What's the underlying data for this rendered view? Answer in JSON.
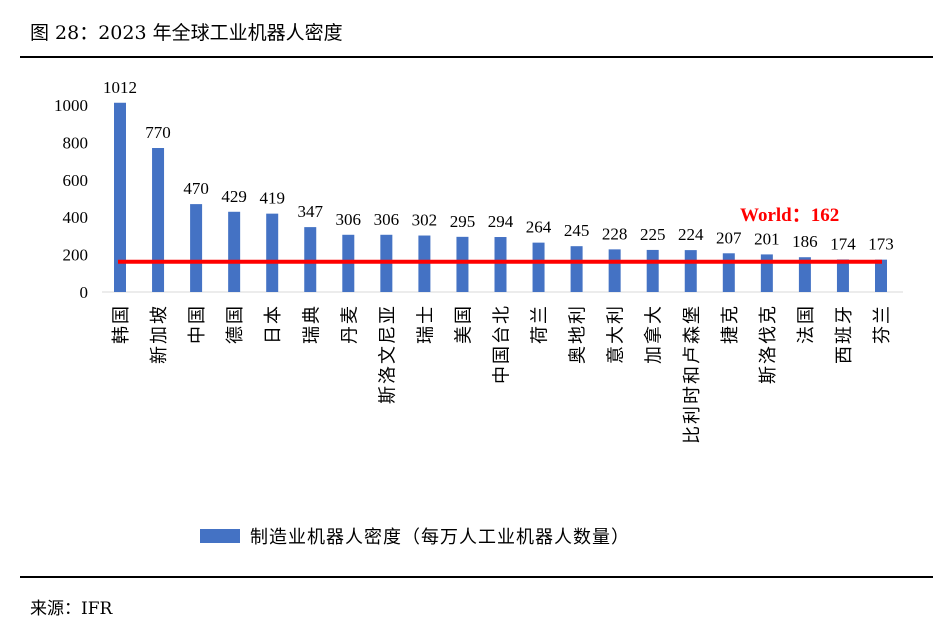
{
  "title": "图 28：2023 年全球工业机器人密度",
  "source": "来源：IFR",
  "chart_data": {
    "type": "bar",
    "title": "",
    "categories": [
      "韩国",
      "新加坡",
      "中国",
      "德国",
      "日本",
      "瑞典",
      "丹麦",
      "斯洛文尼亚",
      "瑞士",
      "美国",
      "中国台北",
      "荷兰",
      "奥地利",
      "意大利",
      "加拿大",
      "比利时和卢森堡",
      "捷克",
      "斯洛伐克",
      "法国",
      "西班牙",
      "芬兰"
    ],
    "series": [
      {
        "name": "制造业机器人密度（每万人工业机器人数量）",
        "values": [
          1012,
          770,
          470,
          429,
          419,
          347,
          306,
          306,
          302,
          295,
          294,
          264,
          245,
          228,
          225,
          224,
          207,
          201,
          186,
          174,
          173
        ],
        "color": "#4472C4"
      }
    ],
    "reference_line": {
      "label": "World：162",
      "value": 162,
      "color": "#FF0000"
    },
    "yticks": [
      0,
      200,
      400,
      600,
      800,
      1000
    ],
    "ylim": [
      0,
      1000
    ],
    "xlabel": "",
    "ylabel": "",
    "grid": false,
    "legend": "bottom"
  }
}
